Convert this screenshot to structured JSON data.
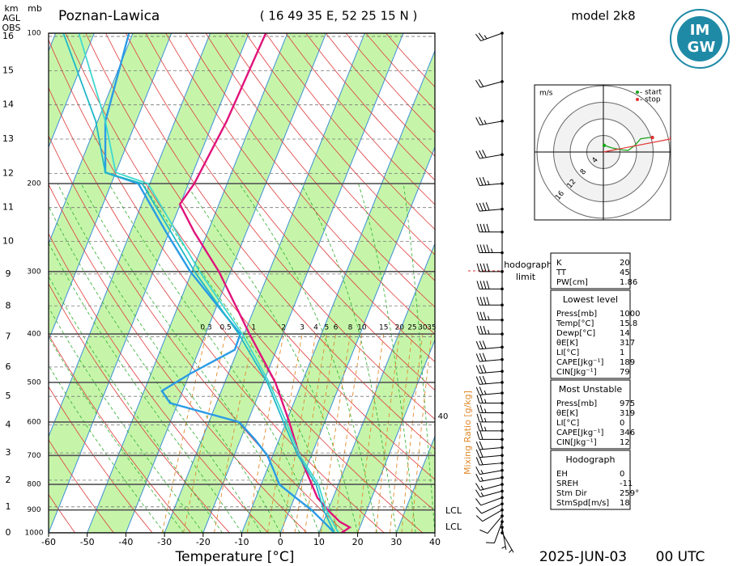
{
  "chart_data": {
    "type": "skewt",
    "title": "Poznan-Lawica",
    "subtitle": "( 16 49 35 E, 52 25 15 N )",
    "model": "model 2k8",
    "date": "2025-JUN-03",
    "time": "00 UTC",
    "xlabel": "Temperature [°C]",
    "xlim": [
      -60,
      40
    ],
    "xticks": [
      -60,
      -50,
      -40,
      -30,
      -20,
      -10,
      0,
      10,
      20,
      30,
      40
    ],
    "ylabel": "mb",
    "ylim": [
      1000,
      100
    ],
    "yticks": [
      100,
      200,
      300,
      400,
      500,
      600,
      700,
      800,
      900,
      1000
    ],
    "log_y": true,
    "km_label": [
      "km",
      "AGL",
      "OBS"
    ],
    "km_ticks": [
      0,
      1,
      2,
      3,
      4,
      5,
      6,
      7,
      8,
      9,
      10,
      11,
      12,
      13,
      14,
      15,
      16
    ],
    "mixing_ratio_label": "Mixing Ratio [g/kg]",
    "mixing_ratios": [
      0.3,
      0.5,
      1,
      2,
      3,
      4,
      5,
      6,
      8,
      10,
      15,
      20,
      25,
      30,
      35
    ],
    "isotherm_label": 40,
    "lcl_labels": [
      "LCL",
      "LCL"
    ],
    "series": [
      {
        "color": "#e0137a",
        "pressure": [
          1000,
          975,
          950,
          900,
          850,
          800,
          700,
          600,
          500,
          400,
          300,
          250,
          220,
          200,
          150,
          100
        ],
        "values": [
          15.8,
          17.4,
          14.2,
          9.9,
          5.9,
          3.1,
          -3.1,
          -9.2,
          -16.9,
          -28.6,
          -43,
          -53.5,
          -60.1,
          -58.5,
          -56.6,
          -55.6
        ]
      },
      {
        "color": "#2a9be6",
        "pressure": [
          1000,
          950,
          900,
          850,
          800,
          750,
          700,
          650,
          600,
          550,
          520,
          480,
          430,
          400,
          300,
          250,
          200,
          190,
          150,
          100
        ],
        "values": [
          14,
          10,
          5.7,
          0.3,
          -5.3,
          -8.2,
          -11.4,
          -16.3,
          -22.2,
          -42,
          -45.4,
          -39.8,
          -30.8,
          -31,
          -50.4,
          -60.8,
          -73,
          -82.7,
          -88,
          -91
        ]
      },
      {
        "color": "#1fb8c8",
        "pressure": [
          1000,
          900,
          800,
          700,
          600,
          500,
          400,
          300,
          200,
          190,
          150,
          100
        ],
        "values": [
          14,
          8.8,
          4.2,
          -3.5,
          -10.7,
          -19,
          -31.4,
          -49.3,
          -72,
          -82.7,
          -90.5,
          -108
        ]
      },
      {
        "color": "#3fd8cf",
        "pressure": [
          1000,
          900,
          800,
          700,
          600,
          500,
          400,
          300,
          200,
          190,
          150,
          100
        ],
        "values": [
          15,
          9.5,
          4.8,
          -3,
          -10,
          -18.5,
          -30.5,
          -48,
          -70.5,
          -80,
          -88,
          -104
        ]
      }
    ],
    "winds": {
      "pressure": [
        1000,
        975,
        950,
        925,
        900,
        875,
        850,
        825,
        800,
        775,
        750,
        725,
        700,
        675,
        650,
        625,
        600,
        575,
        550,
        525,
        500,
        475,
        450,
        425,
        400,
        375,
        350,
        325,
        300,
        275,
        250,
        225,
        200,
        175,
        150,
        125,
        100
      ],
      "direction": [
        150,
        170,
        200,
        220,
        240,
        245,
        250,
        255,
        255,
        260,
        260,
        265,
        265,
        265,
        270,
        270,
        270,
        270,
        270,
        265,
        265,
        265,
        265,
        265,
        270,
        270,
        270,
        270,
        270,
        270,
        270,
        265,
        265,
        260,
        260,
        255,
        250
      ],
      "speed": [
        5,
        5,
        10,
        10,
        10,
        10,
        10,
        15,
        15,
        15,
        15,
        20,
        20,
        20,
        20,
        25,
        25,
        25,
        25,
        25,
        30,
        30,
        30,
        30,
        35,
        35,
        40,
        40,
        40,
        45,
        40,
        40,
        35,
        30,
        25,
        20,
        25
      ]
    },
    "hodograph": {
      "unit": "m/s",
      "legend": [
        "- start",
        "- stop"
      ],
      "rings": [
        4,
        8,
        12,
        16
      ],
      "u": [
        0.2,
        2,
        4.5,
        6,
        7.5,
        9,
        11,
        11.8
      ],
      "v": [
        1.6,
        1,
        0.5,
        0.4,
        1.5,
        3.2,
        3.5,
        3.5
      ],
      "limit_label": [
        "hodograph",
        "limit"
      ]
    }
  },
  "panel": {
    "logo": [
      "IM",
      "GW"
    ],
    "boxes": [
      {
        "rows": [
          [
            "K",
            20
          ],
          [
            "TT",
            45
          ],
          [
            "PW[cm]",
            1.86
          ]
        ]
      },
      {
        "title": "Lowest level",
        "rows": [
          [
            "Press[mb]",
            1000
          ],
          [
            "Temp[°C]",
            15.8
          ],
          [
            "Dewp[°C]",
            14
          ],
          [
            "θE[K]",
            317
          ],
          [
            "LI[°C]",
            1
          ],
          [
            "CAPE[Jkg⁻¹]",
            189
          ],
          [
            "CIN[Jkg⁻¹]",
            79
          ]
        ]
      },
      {
        "title": "Most Unstable",
        "rows": [
          [
            "Press[mb]",
            975
          ],
          [
            "θE[K]",
            319
          ],
          [
            "LI[°C]",
            0
          ],
          [
            "CAPE[Jkg⁻¹]",
            346
          ],
          [
            "CIN[Jkg⁻¹]",
            12
          ]
        ]
      },
      {
        "title": "Hodograph",
        "rows": [
          [
            "EH",
            0
          ],
          [
            "SREH",
            -11
          ],
          [
            "Stm Dir",
            {
              "value": 259,
              "label": "259°"
            }
          ],
          [
            "StmSpd[m/s]",
            18
          ]
        ]
      }
    ]
  }
}
